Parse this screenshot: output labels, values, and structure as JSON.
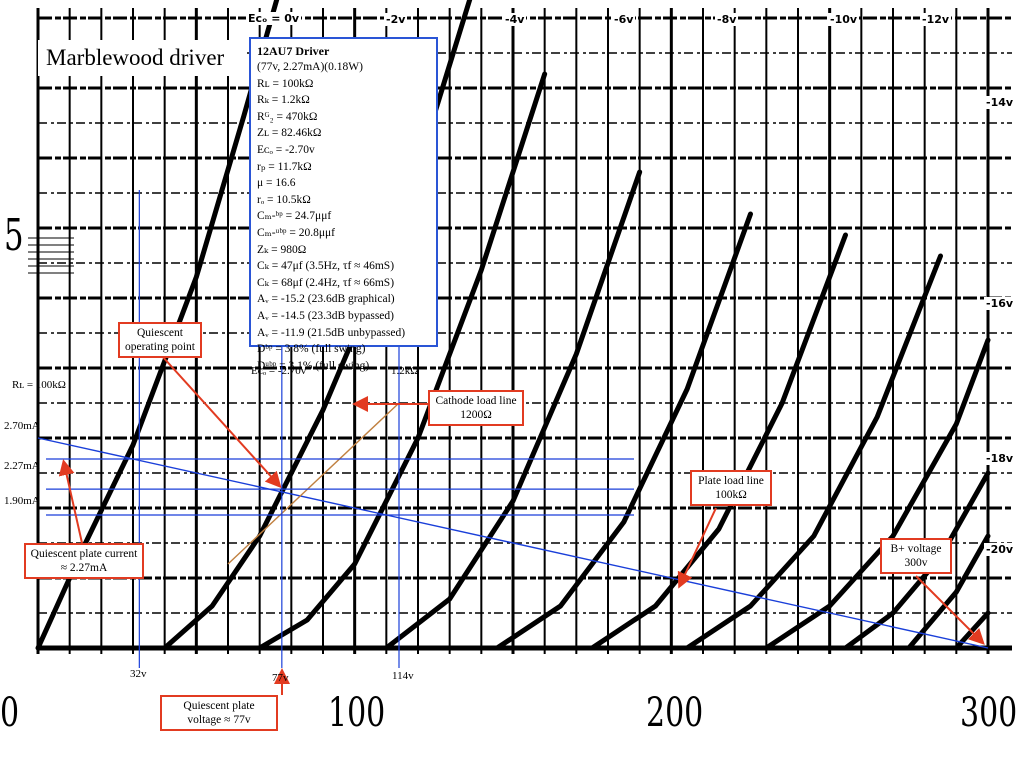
{
  "title": "Marblewood driver",
  "info": {
    "heading": "12AU7 Driver",
    "lines": [
      "(77v, 2.27mA)(0.18W)",
      "Rʟ = 100kΩ",
      "Rₖ = 1.2kΩ",
      "Rᴳ₂ = 470kΩ",
      "Zʟ = 82.46kΩ",
      "Eᴄₒ = -2.70v",
      "rₚ = 11.7kΩ",
      "μ = 16.6",
      "rₒ = 10.5kΩ",
      "Cₘ-ᵇᵖ = 24.7μμf",
      "Cₘ-ᵘᵇᵖ = 20.8μμf",
      "Zₖ = 980Ω",
      "Cₖ = 47μf (3.5Hz, τf ≈ 46mS)",
      "Cₖ = 68μf (2.4Hz, τf ≈ 66mS)",
      "Aᵥ = -15.2 (23.6dB graphical)",
      "Aᵥ = -14.5 (23.3dB bypassed)",
      "Aᵥ = -11.9 (21.5dB unbypassed)",
      "Dᵇᵖ = 3.8% (full swing)",
      "Dᵘᵇᵖ = 3.1% (full swing)"
    ]
  },
  "callouts": {
    "quiescent_point": "Quiescent operating point",
    "cathode_load": "Cathode load line 1200Ω",
    "plate_load": "Plate load line 100kΩ",
    "bplus": "B+ voltage 300v",
    "plate_current": "Quiescent plate current ≈ 2.27mA",
    "plate_voltage": "Quiescent plate voltage ≈ 77v"
  },
  "labels": {
    "rl": "Rʟ = 100kΩ",
    "eco_op": "Eᴄₒ = -2.70v",
    "r_cathode": "1.2kΩ",
    "ma_270": "2.70mA",
    "ma_227": "2.27mA",
    "ma_190": "1.90mA",
    "v32": "32v",
    "v77": "77v",
    "v114": "114v",
    "five": "5"
  },
  "chart_data": {
    "type": "line",
    "title": "Marblewood driver",
    "xlabel": "",
    "ylabel": "",
    "xlim": [
      0,
      300
    ],
    "x_ticks": [
      0,
      100,
      200,
      300
    ],
    "grid": true,
    "grid_curve_labels": [
      "Eᴄₒ = 0v",
      "-2v",
      "-4v",
      "-6v",
      "-8v",
      "-10v",
      "-12v",
      "-14v",
      "-16v",
      "-18v",
      "-20v"
    ],
    "series": [
      {
        "name": "Eᴄₒ = 0v",
        "x": [
          0,
          15,
          30,
          50,
          65,
          80
        ],
        "y": [
          0.0,
          1.5,
          2.9,
          5.3,
          7.6,
          10.0
        ]
      },
      {
        "name": "-2v",
        "x": [
          40,
          55,
          70,
          90,
          105,
          125,
          140
        ],
        "y": [
          0.0,
          0.6,
          1.6,
          3.4,
          5.0,
          7.6,
          9.8
        ]
      },
      {
        "name": "-4v",
        "x": [
          70,
          85,
          100,
          120,
          140,
          160
        ],
        "y": [
          0.0,
          0.4,
          1.2,
          3.0,
          5.4,
          8.2
        ]
      },
      {
        "name": "-6v",
        "x": [
          110,
          130,
          150,
          170,
          190
        ],
        "y": [
          0.0,
          0.7,
          2.1,
          4.2,
          6.8
        ]
      },
      {
        "name": "-8v",
        "x": [
          145,
          165,
          185,
          205,
          225
        ],
        "y": [
          0.0,
          0.6,
          1.8,
          3.7,
          6.2
        ]
      },
      {
        "name": "-10v",
        "x": [
          175,
          195,
          215,
          235,
          255
        ],
        "y": [
          0.0,
          0.6,
          1.7,
          3.5,
          5.9
        ]
      },
      {
        "name": "-12v",
        "x": [
          205,
          225,
          245,
          265,
          285
        ],
        "y": [
          0.0,
          0.6,
          1.6,
          3.3,
          5.6
        ]
      },
      {
        "name": "-14v",
        "x": [
          230,
          250,
          270,
          290,
          300
        ],
        "y": [
          0.0,
          0.6,
          1.6,
          3.2,
          4.4
        ]
      },
      {
        "name": "-16v",
        "x": [
          255,
          270,
          285,
          300
        ],
        "y": [
          0.0,
          0.5,
          1.3,
          2.5
        ]
      },
      {
        "name": "-18v",
        "x": [
          275,
          290,
          300
        ],
        "y": [
          0.0,
          0.8,
          1.6
        ]
      },
      {
        "name": "-20v",
        "x": [
          290,
          300
        ],
        "y": [
          0.0,
          0.5
        ]
      }
    ],
    "plate_load_line": {
      "name": "Plate load line 100kΩ",
      "x": [
        0,
        300
      ],
      "y": [
        3.0,
        0.0
      ]
    },
    "cathode_load_line": {
      "name": "Cathode load line 1200Ω",
      "x": [
        60,
        114
      ],
      "y": [
        1.2,
        3.5
      ]
    },
    "quiescent_point": {
      "x": 77,
      "y": 2.27
    },
    "ref_currents": [
      2.7,
      2.27,
      1.9
    ],
    "ref_voltages": [
      32,
      77,
      114
    ]
  }
}
